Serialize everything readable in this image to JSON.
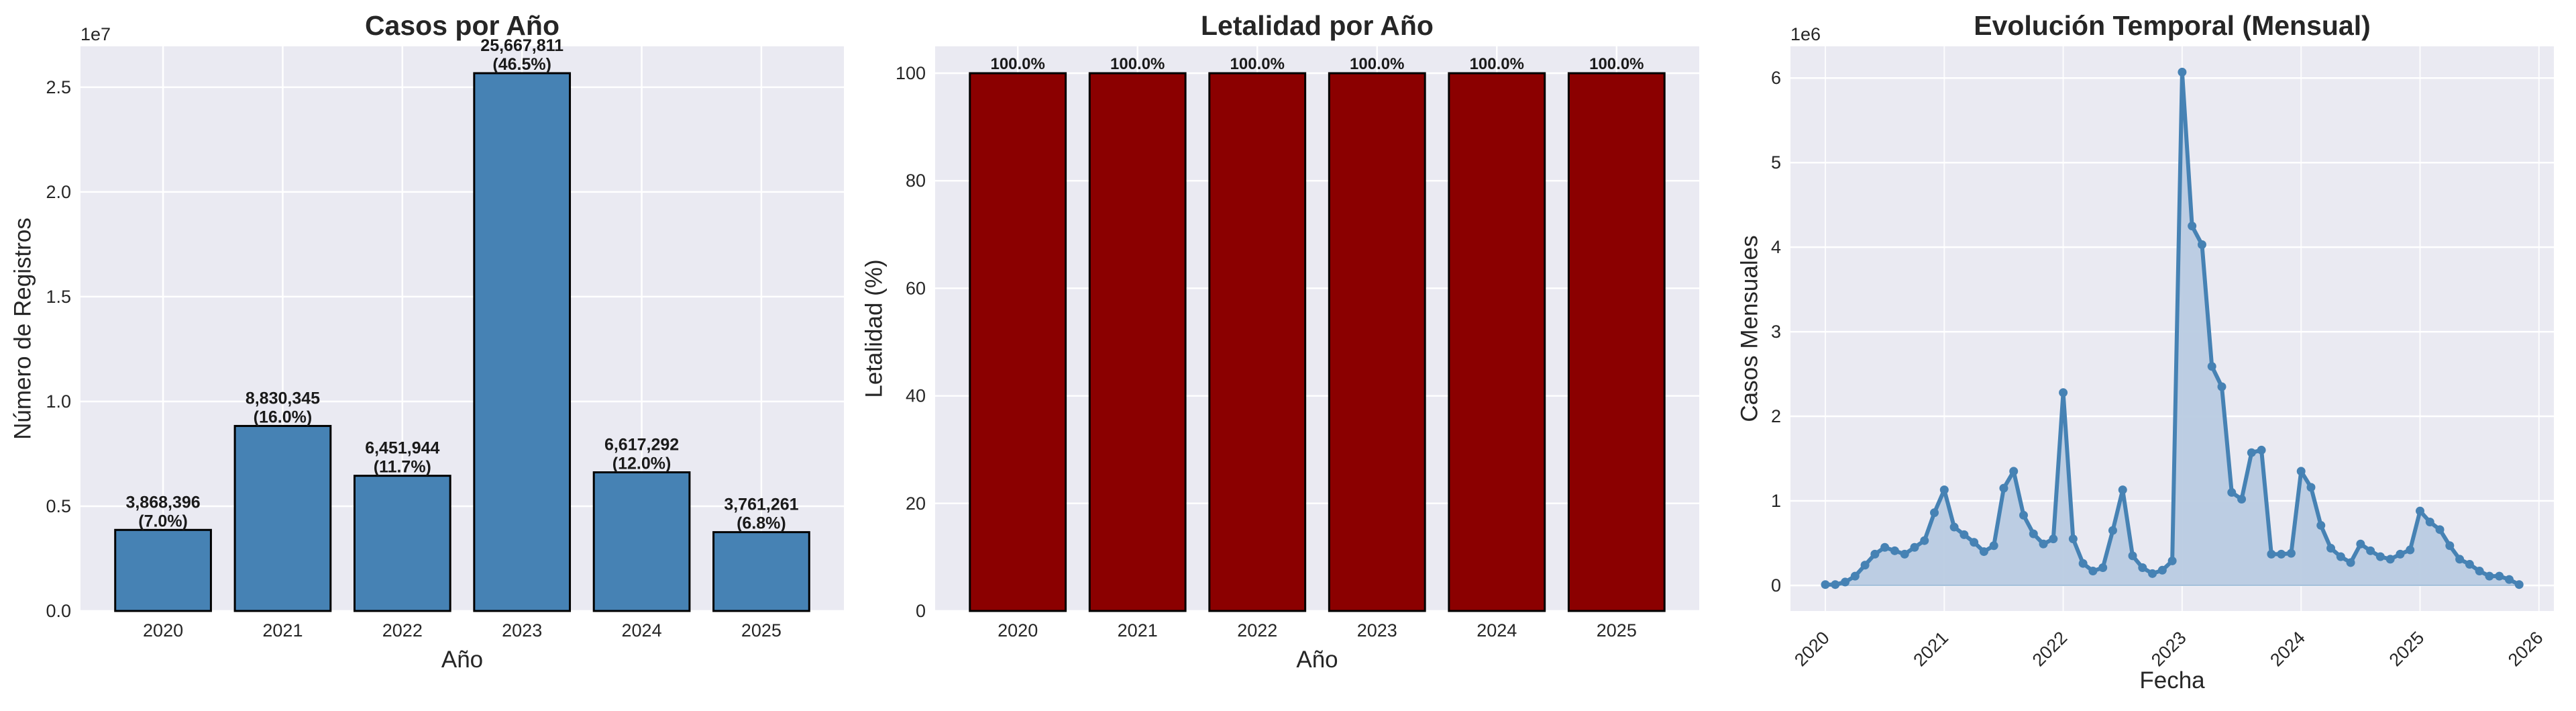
{
  "figure": {
    "background": "#ffffff",
    "axes_background": "#eaeaf2",
    "grid_color": "#ffffff"
  },
  "chart_data": [
    {
      "id": "casos",
      "type": "bar",
      "title": "Casos por Año",
      "xlabel": "Año",
      "ylabel": "Número de Registros",
      "y_offset_label": "1e7",
      "categories": [
        "2020",
        "2021",
        "2022",
        "2023",
        "2024",
        "2025"
      ],
      "values": [
        3868396,
        8830345,
        6451944,
        25667811,
        6617292,
        3761261
      ],
      "value_labels": [
        "3,868,396",
        "8,830,345",
        "6,451,944",
        "25,667,811",
        "6,617,292",
        "3,761,261"
      ],
      "percent_labels": [
        "(7.0%)",
        "(16.0%)",
        "(11.7%)",
        "(46.5%)",
        "(12.0%)",
        "(6.8%)"
      ],
      "yticks": [
        0,
        5000000,
        10000000,
        15000000,
        20000000,
        25000000
      ],
      "ytick_labels": [
        "0.0",
        "0.5",
        "1.0",
        "1.5",
        "2.0",
        "2.5"
      ],
      "ylim": [
        0,
        26950000
      ],
      "color": "#4682b4",
      "edgecolor": "#000000",
      "grid": true
    },
    {
      "id": "letalidad",
      "type": "bar",
      "title": "Letalidad por Año",
      "xlabel": "Año",
      "ylabel": "Letalidad (%)",
      "categories": [
        "2020",
        "2021",
        "2022",
        "2023",
        "2024",
        "2025"
      ],
      "values": [
        100.0,
        100.0,
        100.0,
        100.0,
        100.0,
        100.0
      ],
      "value_labels": [
        "100.0%",
        "100.0%",
        "100.0%",
        "100.0%",
        "100.0%",
        "100.0%"
      ],
      "yticks": [
        0,
        20,
        40,
        60,
        80,
        100
      ],
      "ytick_labels": [
        "0",
        "20",
        "40",
        "60",
        "80",
        "100"
      ],
      "ylim": [
        0,
        105
      ],
      "color": "#8b0000",
      "edgecolor": "#000000",
      "grid": true
    },
    {
      "id": "evolucion",
      "type": "area",
      "title": "Evolución Temporal (Mensual)",
      "xlabel": "Fecha",
      "ylabel": "Casos Mensuales",
      "y_offset_label": "1e6",
      "x_start": "2020-01",
      "x_end": "2025-11",
      "frequency": "monthly",
      "values": [
        10000,
        10000,
        40000,
        110000,
        240000,
        370000,
        450000,
        410000,
        370000,
        450000,
        530000,
        860000,
        1130000,
        690000,
        600000,
        510000,
        400000,
        470000,
        1150000,
        1350000,
        830000,
        610000,
        490000,
        550000,
        2280000,
        550000,
        260000,
        170000,
        210000,
        650000,
        1130000,
        350000,
        210000,
        140000,
        180000,
        290000,
        6070000,
        4250000,
        4030000,
        2590000,
        2350000,
        1100000,
        1020000,
        1570000,
        1600000,
        370000,
        370000,
        380000,
        1350000,
        1160000,
        710000,
        440000,
        340000,
        270000,
        490000,
        410000,
        340000,
        310000,
        370000,
        420000,
        880000,
        750000,
        660000,
        470000,
        310000,
        250000,
        170000,
        110000,
        110000,
        70000,
        10000
      ],
      "xticks": [
        "2020",
        "2021",
        "2022",
        "2023",
        "2024",
        "2025",
        "2026"
      ],
      "xtick_rotation": 45,
      "yticks": [
        0,
        1000000,
        2000000,
        3000000,
        4000000,
        5000000,
        6000000
      ],
      "ytick_labels": [
        "0",
        "1",
        "2",
        "3",
        "4",
        "5",
        "6"
      ],
      "ylim": [
        -302000,
        6375000
      ],
      "line_color": "#4682b4",
      "fill_color": "#b9cbe1",
      "marker": "o",
      "grid": true
    }
  ]
}
